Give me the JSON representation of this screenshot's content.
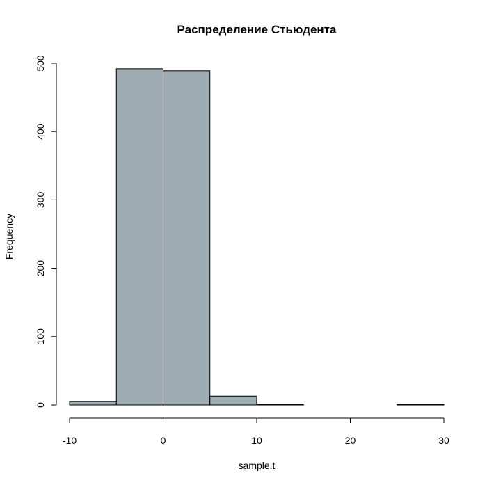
{
  "chart_data": {
    "type": "bar",
    "title": "Распределение Стьюдента",
    "xlabel": "sample.t",
    "ylabel": "Frequency",
    "bar_color": "#9eadb4",
    "xlim": [
      -10,
      30
    ],
    "ylim": [
      0,
      500
    ],
    "bins": [
      {
        "x0": -10,
        "x1": -5,
        "count": 5
      },
      {
        "x0": -5,
        "x1": 0,
        "count": 492
      },
      {
        "x0": 0,
        "x1": 5,
        "count": 489
      },
      {
        "x0": 5,
        "x1": 10,
        "count": 13
      },
      {
        "x0": 10,
        "x1": 15,
        "count": 1
      },
      {
        "x0": 15,
        "x1": 20,
        "count": 0
      },
      {
        "x0": 20,
        "x1": 25,
        "count": 0
      },
      {
        "x0": 25,
        "x1": 30,
        "count": 1
      }
    ],
    "x_ticks": [
      {
        "value": -10,
        "label": "-10"
      },
      {
        "value": 0,
        "label": "0"
      },
      {
        "value": 10,
        "label": "10"
      },
      {
        "value": 20,
        "label": "20"
      },
      {
        "value": 30,
        "label": "30"
      }
    ],
    "y_ticks": [
      {
        "value": 0,
        "label": "0"
      },
      {
        "value": 100,
        "label": "100"
      },
      {
        "value": 200,
        "label": "200"
      },
      {
        "value": 300,
        "label": "300"
      },
      {
        "value": 400,
        "label": "400"
      },
      {
        "value": 500,
        "label": "500"
      }
    ],
    "grid": false,
    "legend": "none"
  }
}
